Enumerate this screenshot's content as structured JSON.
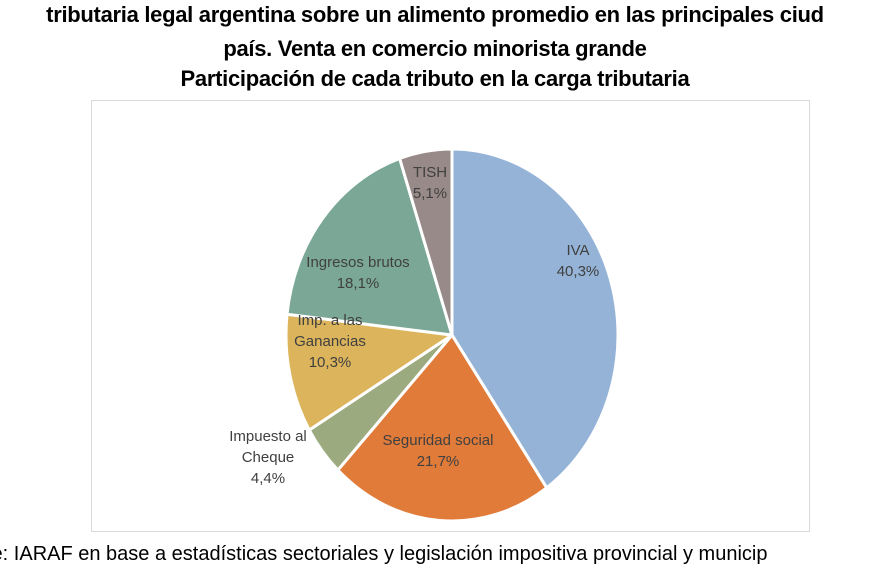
{
  "title": {
    "line1": "tributaria legal argentina sobre un alimento promedio en las principales ciud",
    "line2": "país. Venta en comercio minorista grande",
    "line3": "Participación de cada tributo en la carga tributaria"
  },
  "source": "te: IARAF en base a estadísticas  sectoriales y legislación impositiva  provincial y municip",
  "labels": {
    "iva": {
      "name": "IVA",
      "value": "40,3%"
    },
    "seguridad": {
      "name": "Seguridad social",
      "value": "21,7%"
    },
    "cheque": {
      "name1": "Impuesto al",
      "name2": "Cheque",
      "value": "4,4%"
    },
    "ganancias": {
      "name1": "Imp. a las",
      "name2": "Ganancias",
      "value": "10,3%"
    },
    "ingresos": {
      "name": "Ingresos brutos",
      "value": "18,1%"
    },
    "tish": {
      "name": "TISH",
      "value": "5,1%"
    }
  },
  "chart_data": {
    "type": "pie",
    "title": "Participación de cada tributo en la carga tributaria",
    "categories": [
      "IVA",
      "Seguridad social",
      "Impuesto al Cheque",
      "Imp. a las Ganancias",
      "Ingresos brutos",
      "TISH"
    ],
    "values": [
      40.3,
      21.7,
      4.4,
      10.3,
      18.1,
      5.1
    ],
    "unit": "%",
    "colors": [
      "#95B3D7",
      "#E07B39",
      "#9BAA7F",
      "#DBB45C",
      "#7AA796",
      "#988A88"
    ],
    "start_angle": "12 o'clock, clockwise",
    "legend": "none (data labels on slices)"
  }
}
